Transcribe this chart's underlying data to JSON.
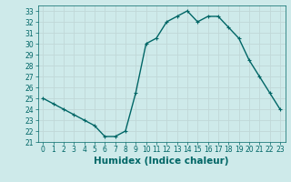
{
  "x": [
    0,
    1,
    2,
    3,
    4,
    5,
    6,
    7,
    8,
    9,
    10,
    11,
    12,
    13,
    14,
    15,
    16,
    17,
    18,
    19,
    20,
    21,
    22,
    23
  ],
  "y": [
    25.0,
    24.5,
    24.0,
    23.5,
    23.0,
    22.5,
    21.5,
    21.5,
    22.0,
    25.5,
    30.0,
    30.5,
    32.0,
    32.5,
    33.0,
    32.0,
    32.5,
    32.5,
    31.5,
    30.5,
    28.5,
    27.0,
    25.5,
    24.0
  ],
  "line_color": "#006666",
  "marker": "+",
  "marker_size": 3,
  "xlabel": "Humidex (Indice chaleur)",
  "xlim": [
    -0.5,
    23.5
  ],
  "ylim": [
    21.0,
    33.5
  ],
  "yticks": [
    21,
    22,
    23,
    24,
    25,
    26,
    27,
    28,
    29,
    30,
    31,
    32,
    33
  ],
  "xticks": [
    0,
    1,
    2,
    3,
    4,
    5,
    6,
    7,
    8,
    9,
    10,
    11,
    12,
    13,
    14,
    15,
    16,
    17,
    18,
    19,
    20,
    21,
    22,
    23
  ],
  "bg_color": "#ceeaea",
  "grid_color": "#c0d8d8",
  "tick_label_fontsize": 5.5,
  "xlabel_fontsize": 7.5,
  "line_width": 1.0,
  "marker_edge_width": 0.8
}
